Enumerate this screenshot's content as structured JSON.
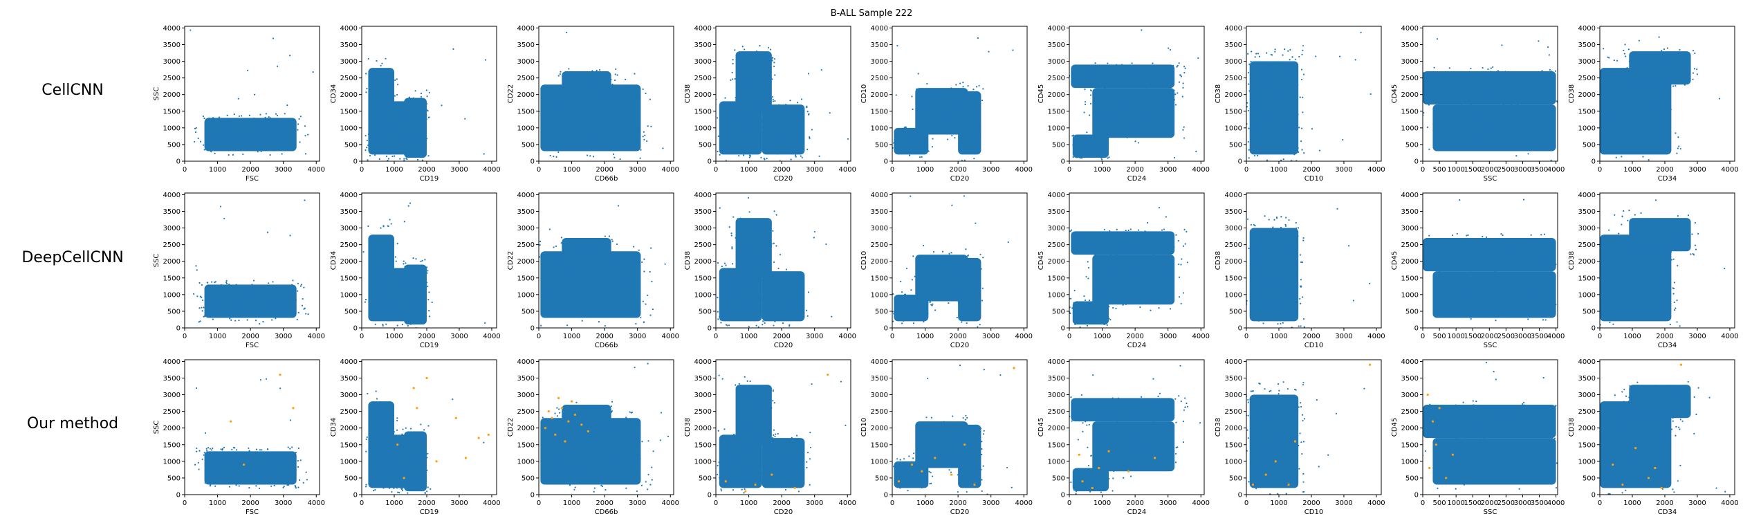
{
  "figure_title": "B-ALL Sample 222",
  "row_labels": [
    "CellCNN",
    "DeepCellCNN",
    "Our method"
  ],
  "colors": {
    "main": "#1f77b4",
    "highlight": "#ff9f0e"
  },
  "chart_data": {
    "type": "scatter",
    "title": "B-ALL Sample 222",
    "rows": [
      "CellCNN",
      "DeepCellCNN",
      "Our method"
    ],
    "grid": false,
    "panels": [
      {
        "xlabel": "FSC",
        "ylabel": "SSC",
        "xlim": [
          0,
          4100
        ],
        "ylim": [
          0,
          4050
        ],
        "xticks": [
          "0",
          "1000",
          "2000",
          "3000",
          "4000"
        ],
        "yticks": [
          "0",
          "500",
          "1000",
          "1500",
          "2000",
          "2500",
          "3000",
          "3500",
          "4000"
        ]
      },
      {
        "xlabel": "CD19",
        "ylabel": "CD34",
        "xlim": [
          0,
          4150
        ],
        "ylim": [
          0,
          4050
        ],
        "xticks": [
          "0",
          "1000",
          "2000",
          "3000",
          "4000"
        ],
        "yticks": [
          "0",
          "500",
          "1000",
          "1500",
          "2000",
          "2500",
          "3000",
          "3500",
          "4000"
        ]
      },
      {
        "xlabel": "CD66b",
        "ylabel": "CD22",
        "xlim": [
          0,
          4100
        ],
        "ylim": [
          0,
          4050
        ],
        "xticks": [
          "0",
          "1000",
          "2000",
          "3000",
          "4000"
        ],
        "yticks": [
          "0",
          "500",
          "1000",
          "1500",
          "2000",
          "2500",
          "3000",
          "3500",
          "4000"
        ]
      },
      {
        "xlabel": "CD20",
        "ylabel": "CD38",
        "xlim": [
          0,
          4100
        ],
        "ylim": [
          0,
          4050
        ],
        "xticks": [
          "0",
          "1000",
          "2000",
          "3000",
          "4000"
        ],
        "yticks": [
          "0",
          "500",
          "1000",
          "1500",
          "2000",
          "2500",
          "3000",
          "3500",
          "4000"
        ]
      },
      {
        "xlabel": "CD20",
        "ylabel": "CD10",
        "xlim": [
          0,
          4100
        ],
        "ylim": [
          0,
          4050
        ],
        "xticks": [
          "0",
          "1000",
          "2000",
          "3000",
          "4000"
        ],
        "yticks": [
          "0",
          "500",
          "1000",
          "1500",
          "2000",
          "2500",
          "3000",
          "3500",
          "4000"
        ]
      },
      {
        "xlabel": "CD24",
        "ylabel": "CD45",
        "xlim": [
          0,
          4100
        ],
        "ylim": [
          0,
          4050
        ],
        "xticks": [
          "0",
          "1000",
          "2000",
          "3000",
          "4000"
        ],
        "yticks": [
          "0",
          "500",
          "1000",
          "1500",
          "2000",
          "2500",
          "3000",
          "3500",
          "4000"
        ]
      },
      {
        "xlabel": "CD10",
        "ylabel": "CD38",
        "xlim": [
          0,
          4150
        ],
        "ylim": [
          0,
          4050
        ],
        "xticks": [
          "0",
          "1000",
          "2000",
          "3000",
          "4000"
        ],
        "yticks": [
          "0",
          "500",
          "1000",
          "1500",
          "2000",
          "2500",
          "3000",
          "3500",
          "4000"
        ]
      },
      {
        "xlabel": "SSC",
        "ylabel": "CD45",
        "xlim": [
          0,
          4050
        ],
        "ylim": [
          0,
          4050
        ],
        "xticks": [
          "0",
          "500",
          "1000",
          "1500",
          "2000",
          "2500",
          "3000",
          "3500",
          "4000"
        ],
        "yticks": [
          "0",
          "500",
          "1000",
          "1500",
          "2000",
          "2500",
          "3000",
          "3500",
          "4000"
        ]
      },
      {
        "xlabel": "CD34",
        "ylabel": "CD38",
        "xlim": [
          0,
          4150
        ],
        "ylim": [
          0,
          4050
        ],
        "xticks": [
          "0",
          "1000",
          "2000",
          "3000",
          "4000"
        ],
        "yticks": [
          "0",
          "500",
          "1000",
          "1500",
          "2000",
          "2500",
          "3000",
          "3500",
          "4000"
        ]
      }
    ],
    "series": [
      {
        "color": "#1f77b4",
        "clusters": [
          [
            [
              600,
              3400,
              300,
              1300,
              8
            ]
          ],
          [
            [
              200,
              1000,
              200,
              2800,
              3
            ],
            [
              700,
              1800,
              200,
              1800,
              3
            ],
            [
              1300,
              2000,
              100,
              1900,
              3
            ]
          ],
          [
            [
              50,
              3100,
              300,
              2300,
              6
            ],
            [
              700,
              2200,
              1900,
              2700,
              2
            ]
          ],
          [
            [
              100,
              1400,
              200,
              1800,
              4
            ],
            [
              600,
              1700,
              1500,
              3300,
              4
            ],
            [
              1400,
              2700,
              200,
              1700,
              3
            ]
          ],
          [
            [
              50,
              1100,
              200,
              1000,
              3
            ],
            [
              700,
              2300,
              800,
              2200,
              3
            ],
            [
              2000,
              2700,
              200,
              2100,
              2
            ]
          ],
          [
            [
              50,
              3200,
              2200,
              2900,
              4
            ],
            [
              700,
              3200,
              700,
              2200,
              4
            ],
            [
              100,
              1200,
              100,
              800,
              2
            ]
          ],
          [
            [
              100,
              1600,
              200,
              3000,
              8
            ]
          ],
          [
            [
              0,
              4000,
              1700,
              2700,
              6
            ],
            [
              300,
              4000,
              300,
              1700,
              3
            ]
          ],
          [
            [
              0,
              2200,
              200,
              2800,
              6
            ],
            [
              900,
              2800,
              2300,
              3300,
              3
            ]
          ]
        ]
      },
      {
        "color": "#ff9f0e",
        "points": [
          [
            [
              1400,
              2200
            ],
            [
              2900,
              3600
            ],
            [
              3300,
              2600
            ],
            [
              1800,
              900
            ]
          ],
          [
            [
              1600,
              3200
            ],
            [
              2300,
              1000
            ],
            [
              3600,
              1700
            ],
            [
              1100,
              1500
            ],
            [
              2900,
              2300
            ],
            [
              1700,
              2600
            ],
            [
              3900,
              1800
            ],
            [
              1300,
              500
            ],
            [
              2000,
              3500
            ],
            [
              3200,
              1100
            ]
          ],
          [
            [
              400,
              2300
            ],
            [
              700,
              2600
            ],
            [
              900,
              2200
            ],
            [
              500,
              1800
            ],
            [
              1100,
              2400
            ],
            [
              200,
              2000
            ],
            [
              1300,
              2100
            ],
            [
              800,
              1600
            ],
            [
              600,
              2900
            ],
            [
              300,
              2500
            ],
            [
              1000,
              2800
            ],
            [
              1500,
              1900
            ]
          ],
          [
            [
              300,
              400
            ],
            [
              1700,
              600
            ],
            [
              2400,
              200
            ],
            [
              900,
              100
            ],
            [
              3400,
              3600
            ],
            [
              1200,
              300
            ]
          ],
          [
            [
              200,
              400
            ],
            [
              900,
              700
            ],
            [
              1800,
              600
            ],
            [
              2500,
              300
            ],
            [
              1300,
              1100
            ],
            [
              2200,
              1500
            ],
            [
              3700,
              3800
            ],
            [
              600,
              900
            ]
          ],
          [
            [
              400,
              400
            ],
            [
              900,
              800
            ],
            [
              1200,
              1300
            ],
            [
              1800,
              700
            ],
            [
              300,
              1200
            ],
            [
              2600,
              1100
            ],
            [
              700,
              200
            ]
          ],
          [
            [
              200,
              300
            ],
            [
              900,
              1000
            ],
            [
              1300,
              300
            ],
            [
              1500,
              1600
            ],
            [
              3800,
              3900
            ],
            [
              600,
              600
            ]
          ],
          [
            [
              200,
              800
            ],
            [
              400,
              1500
            ],
            [
              300,
              2200
            ],
            [
              700,
              500
            ],
            [
              150,
              3000
            ],
            [
              500,
              2600
            ],
            [
              900,
              1200
            ]
          ],
          [
            [
              700,
              300
            ],
            [
              1500,
              500
            ],
            [
              1100,
              1400
            ],
            [
              1700,
              800
            ],
            [
              2500,
              3900
            ],
            [
              400,
              900
            ],
            [
              1900,
              200
            ]
          ]
        ]
      }
    ],
    "panel_series": [
      [
        0
      ],
      [
        0
      ],
      [
        0,
        1
      ]
    ]
  }
}
